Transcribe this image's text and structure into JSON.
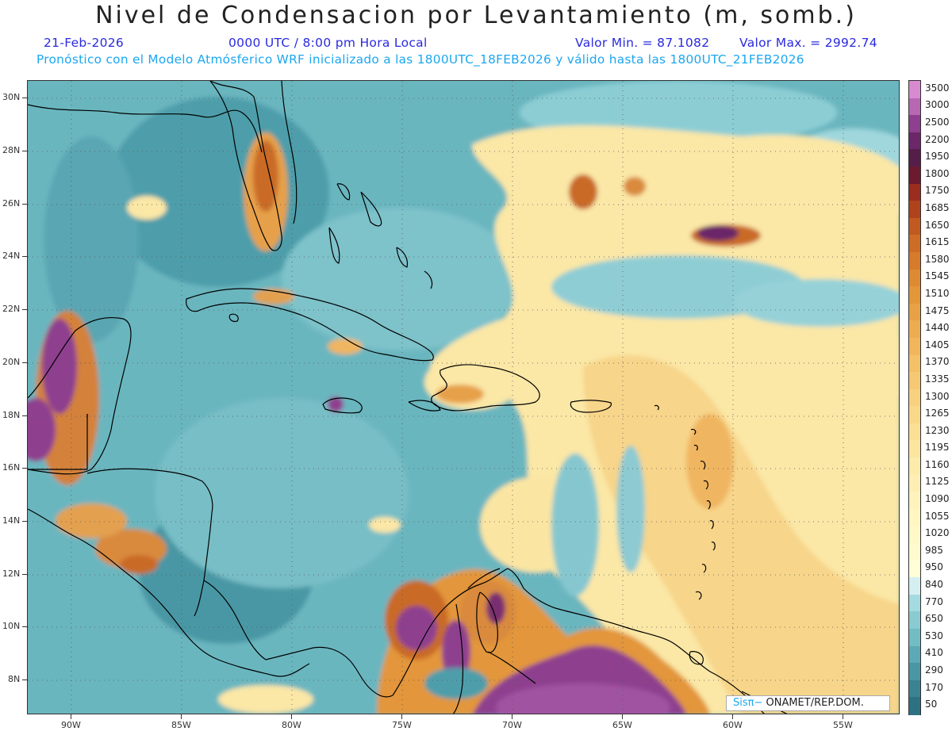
{
  "header": {
    "title": "Nivel de Condensacion por Levantamiento (m, somb.)",
    "date": "21-Feb-2026",
    "time": "0000 UTC / 8:00 pm Hora Local",
    "min_value": "Valor Min. = 87.1082",
    "max_value": "Valor Max. = 2992.74",
    "model_info": "Pronóstico con el Modelo Atmósferico WRF inicializado a las 1800UTC_18FEB2026 y válido hasta las  1800UTC_21FEB2026"
  },
  "map": {
    "lon_range": [
      -92.0,
      -52.5
    ],
    "lat_range": [
      6.7,
      30.7
    ],
    "lat_labels": [
      "30N",
      "28N",
      "26N",
      "24N",
      "22N",
      "20N",
      "18N",
      "16N",
      "14N",
      "12N",
      "10N",
      "8N"
    ],
    "lat_values": [
      30,
      28,
      26,
      24,
      22,
      20,
      18,
      16,
      14,
      12,
      10,
      8
    ],
    "lon_labels": [
      "90W",
      "85W",
      "80W",
      "75W",
      "70W",
      "65W",
      "60W",
      "55W"
    ],
    "lon_values": [
      -90,
      -85,
      -80,
      -75,
      -70,
      -65,
      -60,
      -55
    ],
    "coastline_color": "#000000",
    "grid_style": "dotted"
  },
  "legend": {
    "labels": [
      "3500",
      "3000",
      "2500",
      "2200",
      "1950",
      "1800",
      "1750",
      "1685",
      "1650",
      "1615",
      "1580",
      "1545",
      "1510",
      "1475",
      "1440",
      "1405",
      "1370",
      "1335",
      "1300",
      "1265",
      "1230",
      "1195",
      "1160",
      "1125",
      "1090",
      "1055",
      "1020",
      "985",
      "950",
      "840",
      "770",
      "650",
      "530",
      "410",
      "290",
      "170",
      "50"
    ],
    "colors": [
      "#d78ad0",
      "#b867b3",
      "#8e3f8f",
      "#6b2768",
      "#541e49",
      "#6b1a30",
      "#9a2c20",
      "#b0421c",
      "#c05a20",
      "#cc6c25",
      "#d57b2b",
      "#dd8a32",
      "#e3963a",
      "#e8a145",
      "#eeac50",
      "#f1b65c",
      "#f4c068",
      "#f6c873",
      "#f8d17f",
      "#f9d88a",
      "#fadf95",
      "#fbe59f",
      "#fcebaa",
      "#fdefb3",
      "#fef3bc",
      "#fff6c2",
      "#fff8c8",
      "#fffbcf",
      "#fffed6",
      "#d5eff0",
      "#a4dbe0",
      "#89cbd1",
      "#72bcc4",
      "#5caab5",
      "#4996a4",
      "#3a8393",
      "#2e7183"
    ]
  },
  "credit": {
    "logo": "Sisπ−",
    "text": " ONAMET/REP.DOM."
  }
}
